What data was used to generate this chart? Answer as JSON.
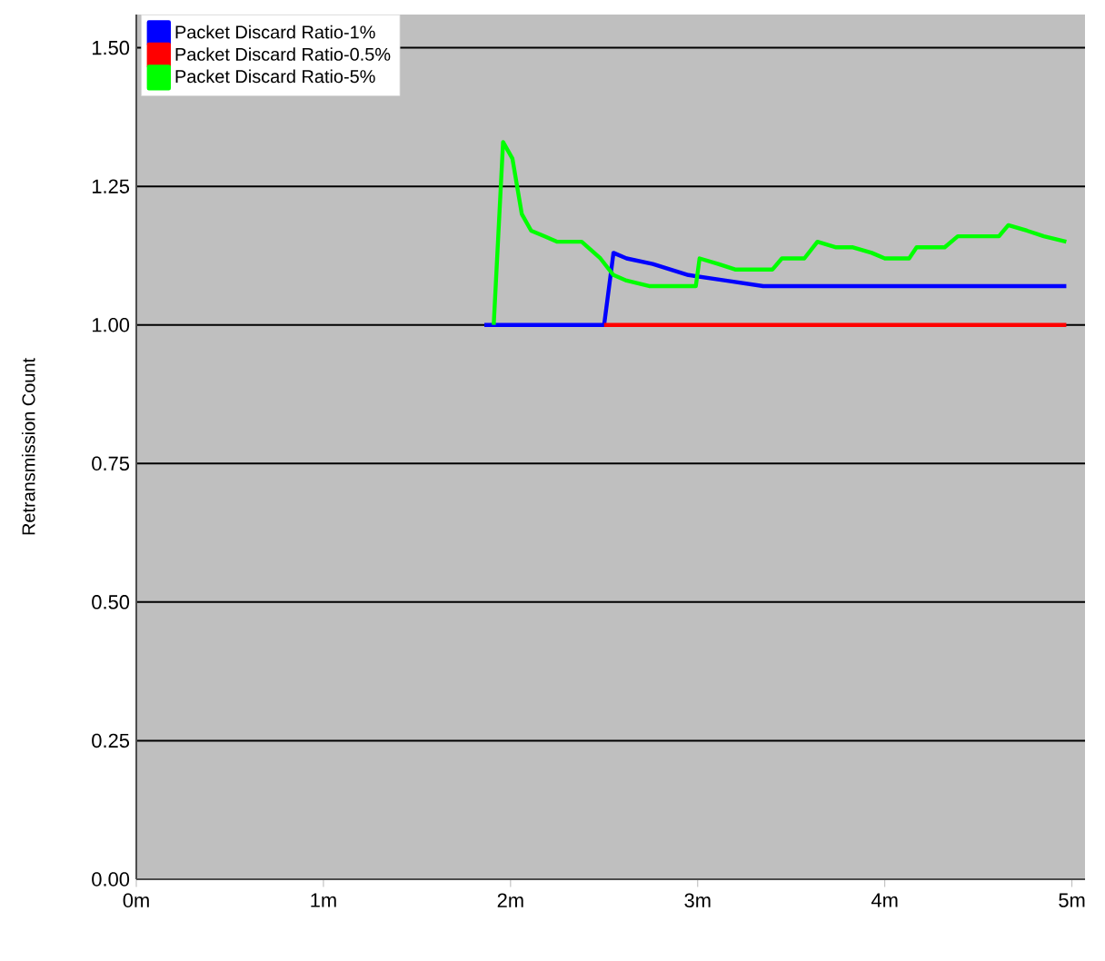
{
  "chart_data": {
    "type": "line",
    "ylabel": "Retransmission Count",
    "xlim": [
      0,
      5.07
    ],
    "ylim": [
      0,
      1.56
    ],
    "xticks": [
      {
        "value": 0,
        "label": "0m"
      },
      {
        "value": 1,
        "label": "1m"
      },
      {
        "value": 2,
        "label": "2m"
      },
      {
        "value": 3,
        "label": "3m"
      },
      {
        "value": 4,
        "label": "4m"
      },
      {
        "value": 5,
        "label": "5m"
      }
    ],
    "yticks": [
      {
        "value": 0,
        "label": "0.00"
      },
      {
        "value": 0.25,
        "label": "0.25"
      },
      {
        "value": 0.5,
        "label": "0.50"
      },
      {
        "value": 0.75,
        "label": "0.75"
      },
      {
        "value": 1,
        "label": "1.00"
      },
      {
        "value": 1.25,
        "label": "1.25"
      },
      {
        "value": 1.5,
        "label": "1.50"
      }
    ],
    "grid": "y",
    "legend": "top left",
    "marker": "none",
    "line_style": "solid",
    "series": [
      {
        "name": "Packet Discard Ratio-1%",
        "color": "#0000ff",
        "x": [
          1.86,
          2.5,
          2.55,
          2.62,
          2.76,
          2.95,
          3.15,
          3.35,
          4.97
        ],
        "values": [
          1.0,
          1.0,
          1.13,
          1.12,
          1.11,
          1.09,
          1.08,
          1.07,
          1.07
        ]
      },
      {
        "name": "Packet Discard Ratio-0.5%",
        "color": "#ff0000",
        "x": [
          2.5,
          4.97
        ],
        "values": [
          1.0,
          1.0
        ]
      },
      {
        "name": "Packet Discard Ratio-5%",
        "color": "#00ff00",
        "x": [
          1.91,
          1.96,
          2.01,
          2.06,
          2.11,
          2.18,
          2.25,
          2.38,
          2.48,
          2.55,
          2.62,
          2.74,
          2.99,
          3.01,
          3.11,
          3.2,
          3.3,
          3.4,
          3.45,
          3.51,
          3.57,
          3.64,
          3.74,
          3.83,
          3.93,
          4.0,
          4.13,
          4.17,
          4.32,
          4.39,
          4.51,
          4.61,
          4.66,
          4.76,
          4.85,
          4.97
        ],
        "values": [
          1.0,
          1.33,
          1.3,
          1.2,
          1.17,
          1.16,
          1.15,
          1.15,
          1.12,
          1.09,
          1.08,
          1.07,
          1.07,
          1.12,
          1.11,
          1.1,
          1.1,
          1.1,
          1.12,
          1.12,
          1.12,
          1.15,
          1.14,
          1.14,
          1.13,
          1.12,
          1.12,
          1.14,
          1.14,
          1.16,
          1.16,
          1.16,
          1.18,
          1.17,
          1.16,
          1.15
        ]
      }
    ]
  }
}
